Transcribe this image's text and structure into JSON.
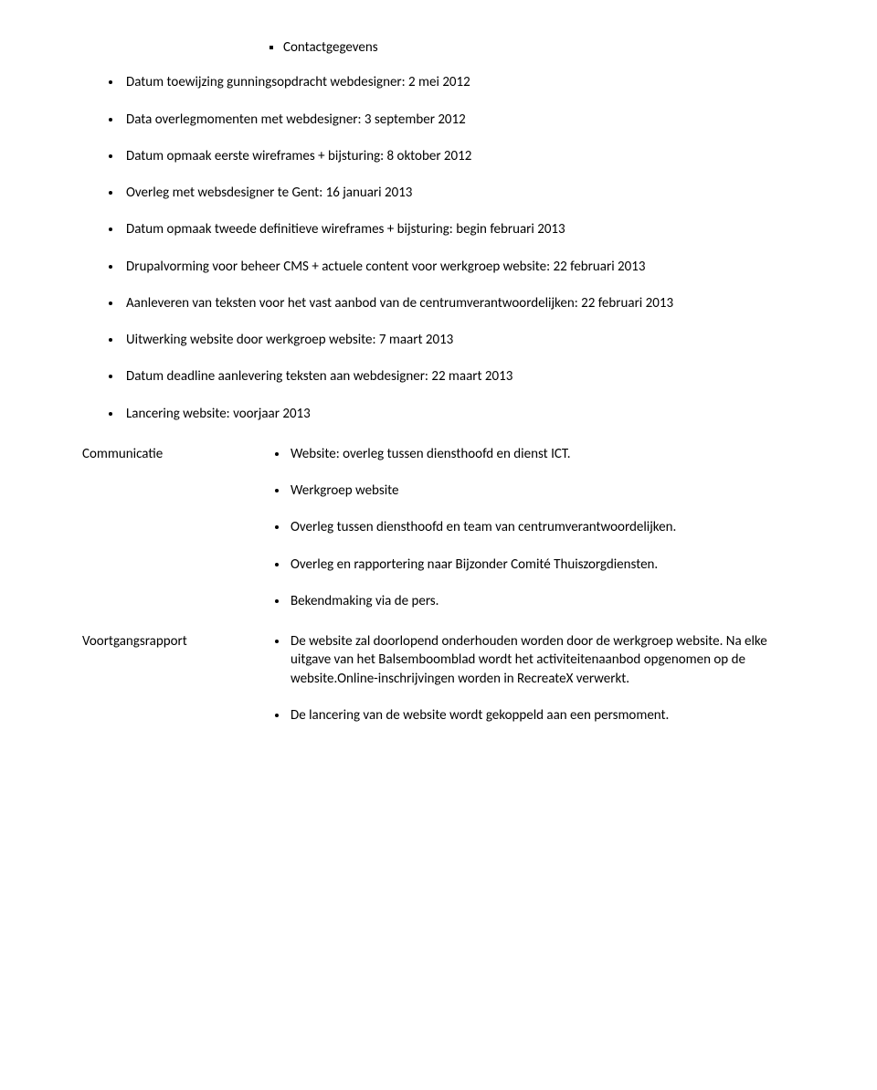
{
  "sublist": {
    "item1": "Contactgegevens"
  },
  "main": {
    "item1": "Datum toewijzing gunningsopdracht webdesigner: 2 mei 2012",
    "item2": "Data overlegmomenten met webdesigner: 3 september 2012",
    "item3": "Datum opmaak eerste wireframes + bijsturing: 8 oktober 2012",
    "item4": "Overleg met websdesigner te Gent: 16 januari 2013",
    "item5": "Datum opmaak tweede definitieve wireframes + bijsturing: begin februari 2013",
    "item6": "Drupalvorming voor beheer CMS + actuele content voor werkgroep website: 22 februari 2013",
    "item7": "Aanleveren van teksten voor het vast aanbod van de centrumverantwoordelijken: 22 februari 2013",
    "item8": "Uitwerking website door werkgroep website: 7 maart 2013",
    "item9": "Datum deadline aanlevering teksten aan webdesigner: 22 maart 2013",
    "item10": "Lancering website: voorjaar 2013"
  },
  "rows": {
    "comm": {
      "label": "Communicatie",
      "b1": "Website: overleg tussen diensthoofd en dienst ICT.",
      "b2": "Werkgroep website",
      "b3": "Overleg tussen diensthoofd en team van centrumverantwoordelijken.",
      "b4": "Overleg en rapportering naar Bijzonder Comité Thuiszorgdiensten.",
      "b5": "Bekendmaking via de pers."
    },
    "voort": {
      "label": "Voortgangsrapport",
      "b1": "De website zal doorlopend onderhouden worden door de werkgroep website. Na elke uitgave van het Balsemboomblad wordt het activiteitenaanbod opgenomen op de website.Online-inschrijvingen worden in RecreateX verwerkt.",
      "b2": "De lancering van de website wordt gekoppeld aan een persmoment."
    }
  }
}
